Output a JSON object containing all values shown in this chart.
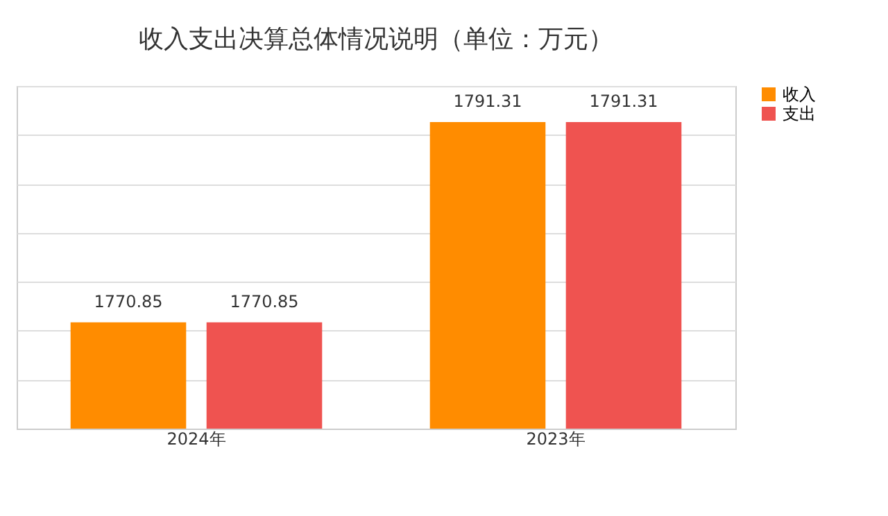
{
  "chart_data": {
    "type": "bar",
    "title": "收入支出决算总体情况说明（单位：万元）",
    "categories": [
      "2024年",
      "2023年"
    ],
    "series": [
      {
        "name": "收入",
        "color": "#ff8c00",
        "values": [
          1770.85,
          1791.31
        ]
      },
      {
        "name": "支出",
        "color": "#ef5350",
        "values": [
          1770.85,
          1791.31
        ]
      }
    ],
    "ylim": [
      1760,
      1795
    ],
    "yticks": [
      {
        "value": 1760,
        "label": null
      },
      {
        "value": 1765,
        "label": null
      },
      {
        "value": 1770,
        "label": null
      },
      {
        "value": 1775,
        "label": null
      },
      {
        "value": 1780,
        "label": null
      },
      {
        "value": 1785,
        "label": null
      },
      {
        "value": 1790,
        "label": null
      },
      {
        "value": 1795,
        "label": null
      }
    ],
    "tick_labels": "x",
    "grid": "y",
    "legend": "right",
    "data_labels": true
  }
}
